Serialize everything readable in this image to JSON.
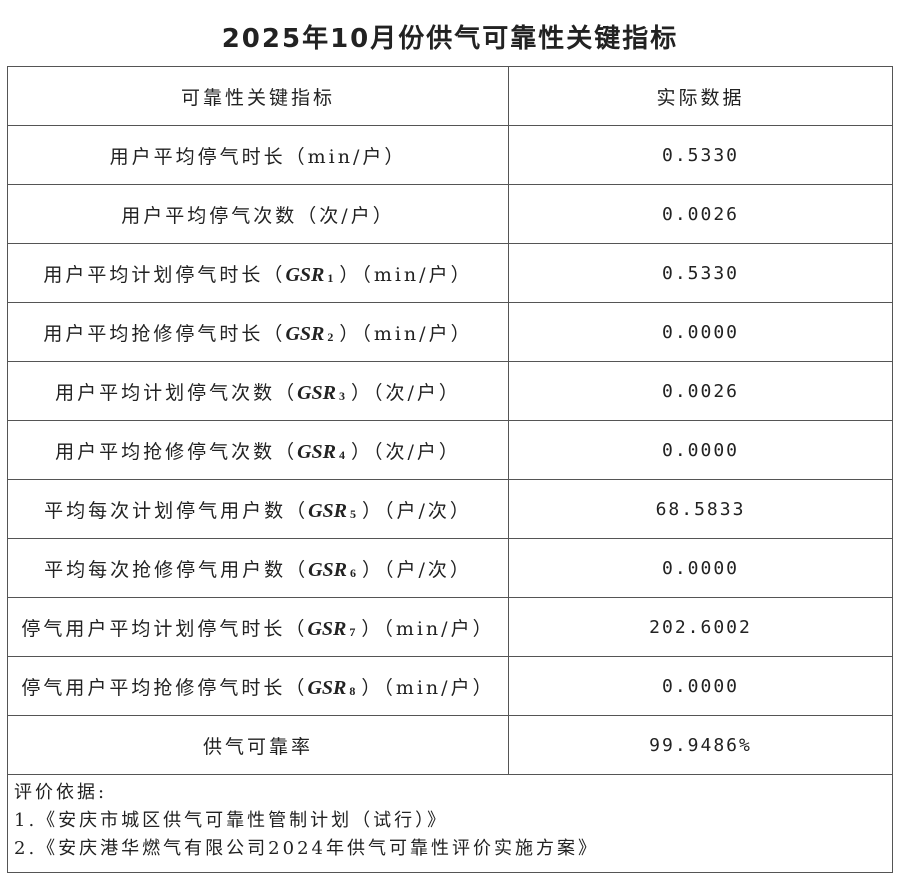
{
  "title": "2025年10月份供气可靠性关键指标",
  "header": {
    "col1": "可靠性关键指标",
    "col2": "实际数据"
  },
  "rows": [
    {
      "pre": "用户平均停气时长（min/户）",
      "gsr": "",
      "sub": "",
      "post": "",
      "value": "0.5330"
    },
    {
      "pre": "用户平均停气次数（次/户）",
      "gsr": "",
      "sub": "",
      "post": "",
      "value": "0.0026"
    },
    {
      "pre": "用户平均计划停气时长（",
      "gsr": "GSR",
      "sub": "1",
      "post": "）（min/户）",
      "value": "0.5330"
    },
    {
      "pre": "用户平均抢修停气时长（",
      "gsr": "GSR",
      "sub": "2",
      "post": "）（min/户）",
      "value": "0.0000"
    },
    {
      "pre": "用户平均计划停气次数（",
      "gsr": "GSR",
      "sub": "3",
      "post": "）（次/户）",
      "value": "0.0026"
    },
    {
      "pre": "用户平均抢修停气次数（",
      "gsr": "GSR",
      "sub": "4",
      "post": "）（次/户）",
      "value": "0.0000"
    },
    {
      "pre": "平均每次计划停气用户数（",
      "gsr": "GSR",
      "sub": "5",
      "post": "）（户/次）",
      "value": "68.5833"
    },
    {
      "pre": "平均每次抢修停气用户数（",
      "gsr": "GSR",
      "sub": "6",
      "post": "）（户/次）",
      "value": "0.0000"
    },
    {
      "pre": "停气用户平均计划停气时长（",
      "gsr": "GSR",
      "sub": "7",
      "post": "）（min/户）",
      "value": "202.6002"
    },
    {
      "pre": "停气用户平均抢修停气时长（",
      "gsr": "GSR",
      "sub": "8",
      "post": "）（min/户）",
      "value": "0.0000"
    },
    {
      "pre": "供气可靠率",
      "gsr": "",
      "sub": "",
      "post": "",
      "value": "99.9486%"
    }
  ],
  "notes": {
    "heading": "评价依据:",
    "items": [
      "1.《安庆市城区供气可靠性管制计划（试行）》",
      "2.《安庆港华燃气有限公司2024年供气可靠性评价实施方案》"
    ]
  }
}
